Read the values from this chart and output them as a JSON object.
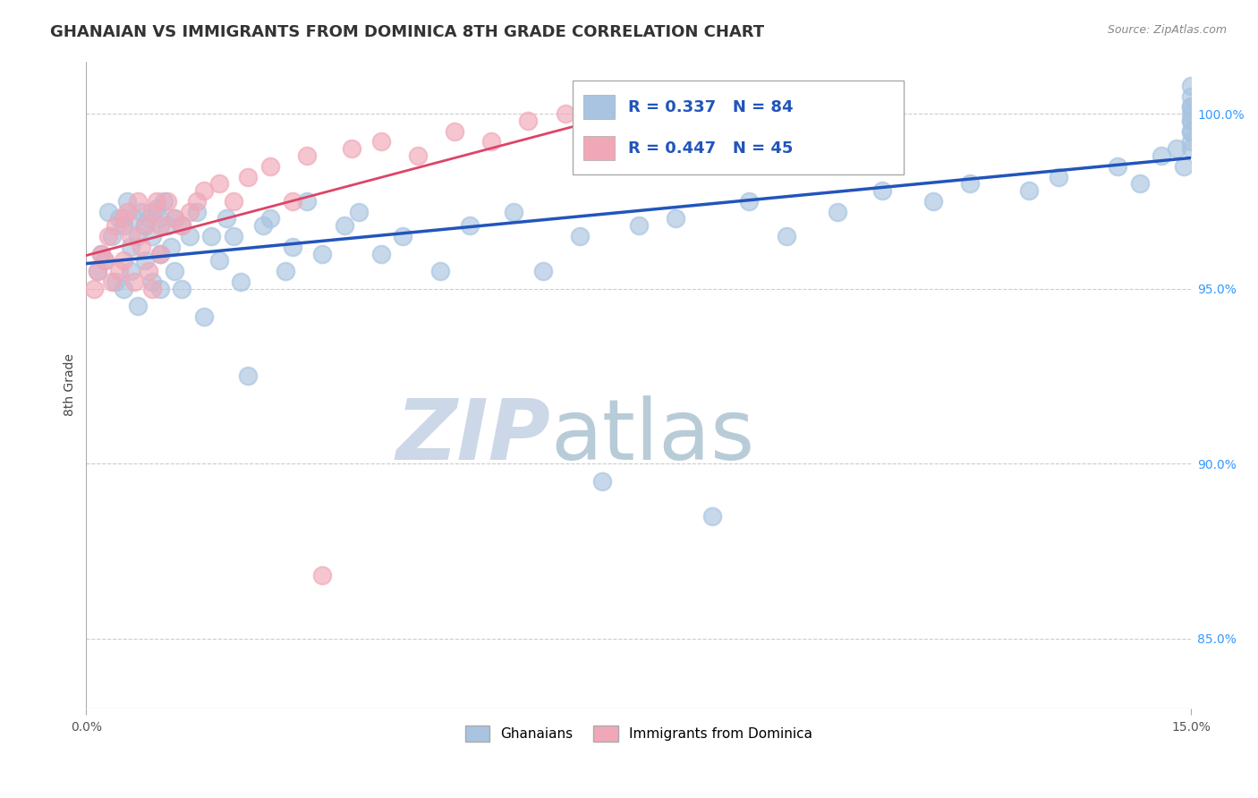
{
  "title": "GHANAIAN VS IMMIGRANTS FROM DOMINICA 8TH GRADE CORRELATION CHART",
  "source_text": "Source: ZipAtlas.com",
  "ylabel": "8th Grade",
  "xlim": [
    0.0,
    15.0
  ],
  "ylim": [
    83.0,
    101.5
  ],
  "x_ticks": [
    0.0,
    15.0
  ],
  "x_tick_labels": [
    "0.0%",
    "15.0%"
  ],
  "y_ticks": [
    85.0,
    90.0,
    95.0,
    100.0
  ],
  "y_tick_labels": [
    "85.0%",
    "90.0%",
    "95.0%",
    "100.0%"
  ],
  "ghanaian_color": "#a8c4e0",
  "dominica_color": "#f0a8b8",
  "ghanaian_line_color": "#2255bb",
  "dominica_line_color": "#dd4466",
  "legend_r_ghana": "R = 0.337",
  "legend_n_ghana": "N = 84",
  "legend_r_dominica": "R = 0.447",
  "legend_n_dominica": "N = 45",
  "legend_label_ghana": "Ghanaians",
  "legend_label_dominica": "Immigrants from Dominica",
  "watermark": "ZIPatlas",
  "watermark_color": "#ccd8e8",
  "title_fontsize": 13,
  "axis_label_fontsize": 10,
  "tick_fontsize": 10,
  "ghanaian_x": [
    0.15,
    0.2,
    0.25,
    0.3,
    0.35,
    0.4,
    0.45,
    0.5,
    0.5,
    0.55,
    0.6,
    0.6,
    0.65,
    0.7,
    0.7,
    0.75,
    0.8,
    0.8,
    0.85,
    0.9,
    0.9,
    0.95,
    1.0,
    1.0,
    1.0,
    1.05,
    1.1,
    1.15,
    1.2,
    1.2,
    1.3,
    1.3,
    1.4,
    1.5,
    1.6,
    1.7,
    1.8,
    1.9,
    2.0,
    2.1,
    2.2,
    2.4,
    2.5,
    2.7,
    2.8,
    3.0,
    3.2,
    3.5,
    3.7,
    4.0,
    4.3,
    4.8,
    5.2,
    5.8,
    6.2,
    6.7,
    7.0,
    7.5,
    8.0,
    8.5,
    9.0,
    9.5,
    10.2,
    10.8,
    11.5,
    12.0,
    12.8,
    13.2,
    14.0,
    14.3,
    14.6,
    14.8,
    14.9,
    15.0,
    15.0,
    15.0,
    15.0,
    15.0,
    15.0,
    15.0,
    15.0,
    15.0,
    15.0,
    15.0
  ],
  "ghanaian_y": [
    95.5,
    96.0,
    95.8,
    97.2,
    96.5,
    95.2,
    97.0,
    96.8,
    95.0,
    97.5,
    96.2,
    95.5,
    97.0,
    96.5,
    94.5,
    97.2,
    96.8,
    95.8,
    97.0,
    96.5,
    95.2,
    97.3,
    97.0,
    96.0,
    95.0,
    97.5,
    96.8,
    96.2,
    97.0,
    95.5,
    96.8,
    95.0,
    96.5,
    97.2,
    94.2,
    96.5,
    95.8,
    97.0,
    96.5,
    95.2,
    92.5,
    96.8,
    97.0,
    95.5,
    96.2,
    97.5,
    96.0,
    96.8,
    97.2,
    96.0,
    96.5,
    95.5,
    96.8,
    97.2,
    95.5,
    96.5,
    89.5,
    96.8,
    97.0,
    88.5,
    97.5,
    96.5,
    97.2,
    97.8,
    97.5,
    98.0,
    97.8,
    98.2,
    98.5,
    98.0,
    98.8,
    99.0,
    98.5,
    99.2,
    99.5,
    99.0,
    99.8,
    100.0,
    99.5,
    100.2,
    99.8,
    100.5,
    100.8,
    100.2
  ],
  "dominica_x": [
    0.1,
    0.15,
    0.2,
    0.25,
    0.3,
    0.35,
    0.4,
    0.45,
    0.5,
    0.5,
    0.55,
    0.6,
    0.65,
    0.7,
    0.75,
    0.8,
    0.85,
    0.9,
    0.9,
    0.95,
    1.0,
    1.0,
    1.1,
    1.2,
    1.3,
    1.4,
    1.5,
    1.6,
    1.8,
    2.0,
    2.2,
    2.5,
    2.8,
    3.0,
    3.2,
    3.6,
    4.0,
    4.5,
    5.0,
    5.5,
    6.0,
    6.5,
    7.0,
    7.5,
    8.0
  ],
  "dominica_y": [
    95.0,
    95.5,
    96.0,
    95.8,
    96.5,
    95.2,
    96.8,
    95.5,
    97.0,
    95.8,
    97.2,
    96.5,
    95.2,
    97.5,
    96.2,
    96.8,
    95.5,
    97.2,
    95.0,
    97.5,
    96.8,
    96.0,
    97.5,
    97.0,
    96.8,
    97.2,
    97.5,
    97.8,
    98.0,
    97.5,
    98.2,
    98.5,
    97.5,
    98.8,
    86.8,
    99.0,
    99.2,
    98.8,
    99.5,
    99.2,
    99.8,
    100.0,
    99.5,
    100.2,
    100.5
  ]
}
